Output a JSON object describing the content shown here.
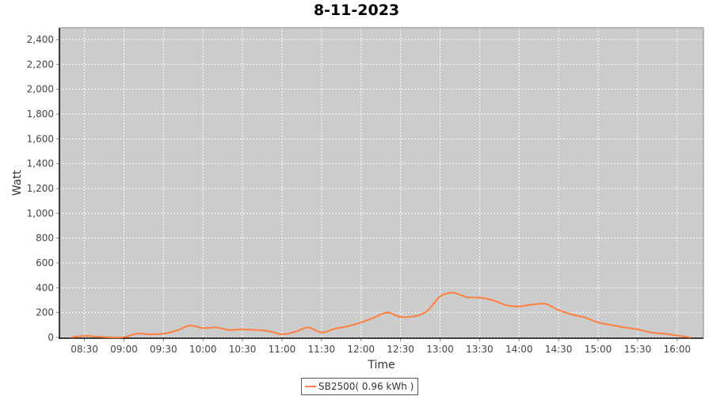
{
  "chart_data": {
    "type": "line",
    "title": "8-11-2023",
    "xlabel": "Time",
    "ylabel": "Watt",
    "ylim": [
      0,
      2400
    ],
    "yticks": [
      "0",
      "200",
      "400",
      "600",
      "800",
      "1,000",
      "1,200",
      "1,400",
      "1,600",
      "1,800",
      "2,000",
      "2,200",
      "2,400"
    ],
    "xticks": [
      "08:30",
      "09:00",
      "09:30",
      "10:00",
      "10:30",
      "11:00",
      "11:30",
      "12:00",
      "12:30",
      "13:00",
      "13:30",
      "14:00",
      "14:30",
      "15:00",
      "15:30",
      "16:00"
    ],
    "xlim": [
      "08:11",
      "16:20"
    ],
    "grid": true,
    "legend": "bottom",
    "series": [
      {
        "name": "SB2500( 0.96 kWh )",
        "color": "#ff7f3f",
        "x": [
          "08:20",
          "08:30",
          "08:40",
          "08:50",
          "09:00",
          "09:10",
          "09:20",
          "09:30",
          "09:40",
          "09:50",
          "10:00",
          "10:10",
          "10:20",
          "10:30",
          "10:40",
          "10:50",
          "11:00",
          "11:10",
          "11:20",
          "11:30",
          "11:40",
          "11:50",
          "12:00",
          "12:10",
          "12:20",
          "12:30",
          "12:40",
          "12:50",
          "13:00",
          "13:10",
          "13:20",
          "13:30",
          "13:40",
          "13:50",
          "14:00",
          "14:10",
          "14:20",
          "14:30",
          "14:40",
          "14:50",
          "15:00",
          "15:10",
          "15:20",
          "15:30",
          "15:40",
          "15:50",
          "16:00",
          "16:10"
        ],
        "values": [
          0,
          12,
          5,
          0,
          2,
          30,
          25,
          30,
          55,
          95,
          75,
          80,
          60,
          65,
          60,
          50,
          25,
          45,
          80,
          40,
          70,
          90,
          120,
          160,
          200,
          165,
          170,
          210,
          330,
          360,
          325,
          320,
          300,
          260,
          250,
          265,
          270,
          220,
          185,
          160,
          120,
          100,
          80,
          65,
          40,
          30,
          15,
          0
        ]
      }
    ],
    "colors": {
      "plot_bg": "#cccccc",
      "grid": "#ffffff"
    }
  }
}
